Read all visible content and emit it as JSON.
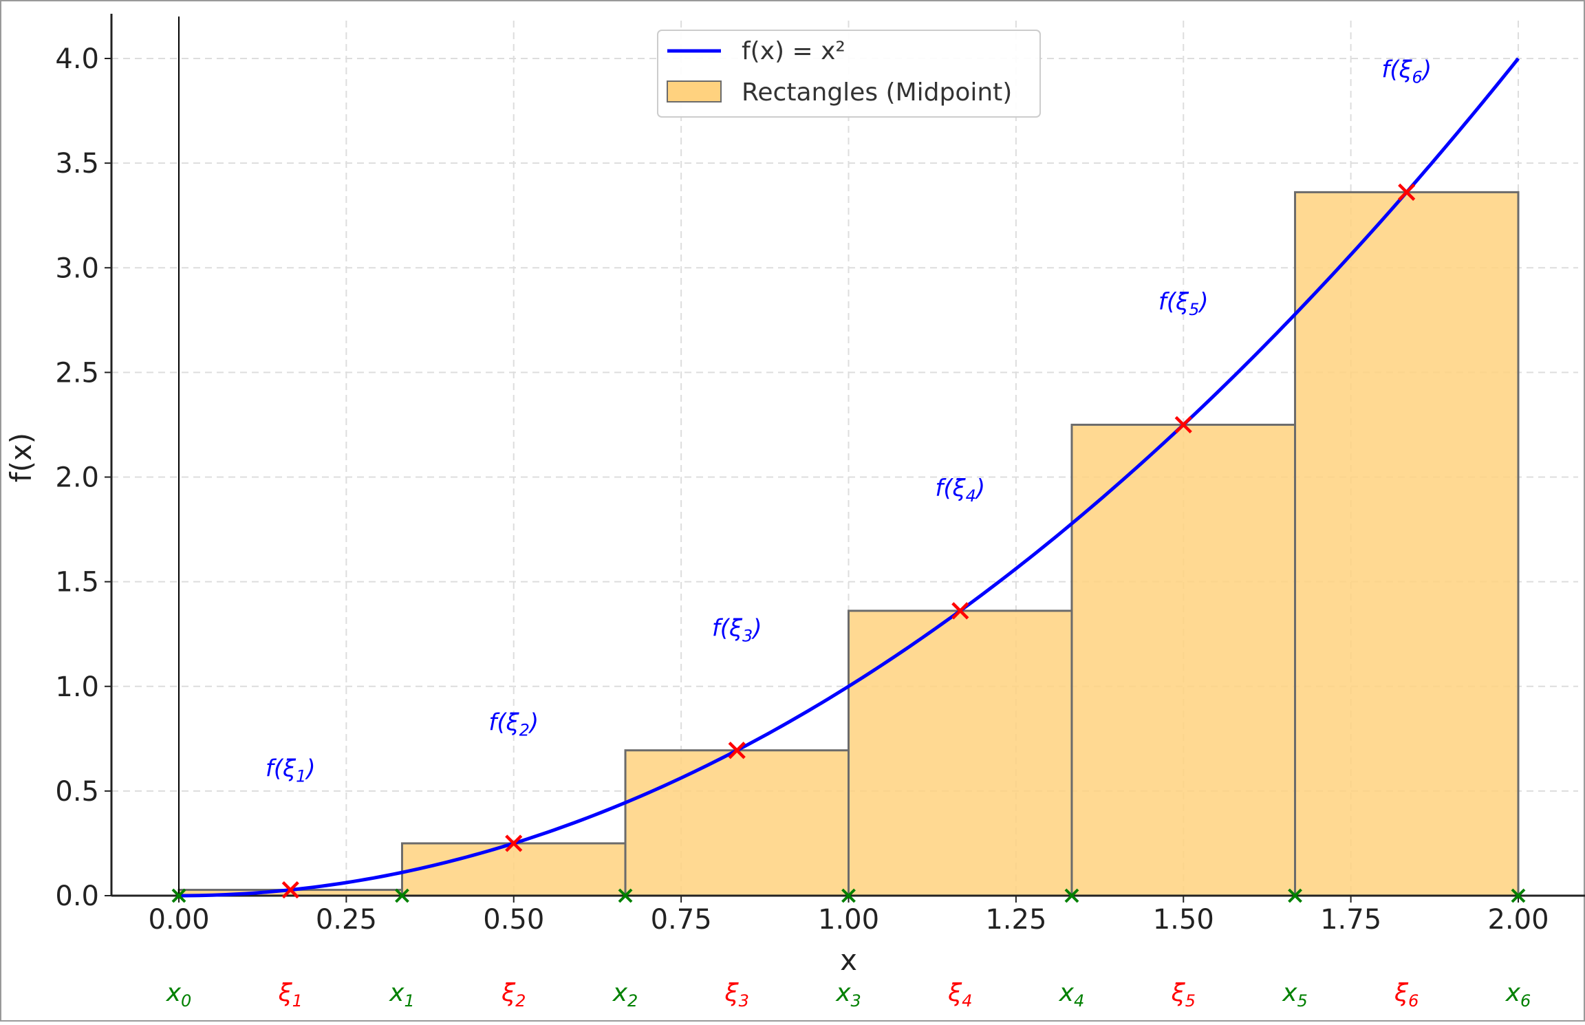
{
  "chart_data": {
    "type": "line",
    "title": "",
    "xlabel": "x",
    "ylabel": "f(x)",
    "xlim": [
      -0.1,
      2.05
    ],
    "ylim": [
      0,
      4.2
    ],
    "xticks": [
      "0.00",
      "0.25",
      "0.50",
      "0.75",
      "1.00",
      "1.25",
      "1.50",
      "1.75",
      "2.00"
    ],
    "yticks": [
      "0.0",
      "0.5",
      "1.0",
      "1.5",
      "2.0",
      "2.5",
      "3.0",
      "3.5",
      "4.0"
    ],
    "grid": true,
    "legend_position": "top-center",
    "series": [
      {
        "name": "f(x) = x²",
        "type": "line",
        "function": "x^2",
        "x_range": [
          0,
          2
        ],
        "color": "#0000ff"
      },
      {
        "name": "Rectangles (Midpoint)",
        "type": "bar",
        "color": "#ffd27f",
        "edge_color": "#6b6b6b",
        "bars": [
          {
            "x0": 0.0,
            "x1": 0.3333,
            "height": 0.0278
          },
          {
            "x0": 0.3333,
            "x1": 0.6667,
            "height": 0.25
          },
          {
            "x0": 0.6667,
            "x1": 1.0,
            "height": 0.6944
          },
          {
            "x0": 1.0,
            "x1": 1.3333,
            "height": 1.3611
          },
          {
            "x0": 1.3333,
            "x1": 1.6667,
            "height": 2.25
          },
          {
            "x0": 1.6667,
            "x1": 2.0,
            "height": 3.3611
          }
        ]
      }
    ],
    "midpoints": {
      "color": "#ff0000",
      "points": [
        {
          "x": 0.1667,
          "y": 0.0278
        },
        {
          "x": 0.5,
          "y": 0.25
        },
        {
          "x": 0.8333,
          "y": 0.6944
        },
        {
          "x": 1.1667,
          "y": 1.3611
        },
        {
          "x": 1.5,
          "y": 2.25
        },
        {
          "x": 1.8333,
          "y": 3.3611
        }
      ]
    },
    "partition_points": {
      "color": "#008000",
      "x": [
        0.0,
        0.3333,
        0.6667,
        1.0,
        1.3333,
        1.6667,
        2.0
      ]
    },
    "annotations": [
      {
        "text": "f(ξ",
        "sub": "1",
        "close": ")",
        "x": 0.1667,
        "y": 0.57
      },
      {
        "text": "f(ξ",
        "sub": "2",
        "close": ")",
        "x": 0.5,
        "y": 0.79
      },
      {
        "text": "f(ξ",
        "sub": "3",
        "close": ")",
        "x": 0.8333,
        "y": 1.24
      },
      {
        "text": "f(ξ",
        "sub": "4",
        "close": ")",
        "x": 1.1667,
        "y": 1.91
      },
      {
        "text": "f(ξ",
        "sub": "5",
        "close": ")",
        "x": 1.5,
        "y": 2.8
      },
      {
        "text": "f(ξ",
        "sub": "6",
        "close": ")",
        "x": 1.8333,
        "y": 3.91
      }
    ],
    "bottom_labels": [
      {
        "base": "x",
        "sub": "0",
        "x": 0.0,
        "color": "#008000"
      },
      {
        "base": "ξ",
        "sub": "1",
        "x": 0.1667,
        "color": "#ff0000"
      },
      {
        "base": "x",
        "sub": "1",
        "x": 0.3333,
        "color": "#008000"
      },
      {
        "base": "ξ",
        "sub": "2",
        "x": 0.5,
        "color": "#ff0000"
      },
      {
        "base": "x",
        "sub": "2",
        "x": 0.6667,
        "color": "#008000"
      },
      {
        "base": "ξ",
        "sub": "3",
        "x": 0.8333,
        "color": "#ff0000"
      },
      {
        "base": "x",
        "sub": "3",
        "x": 1.0,
        "color": "#008000"
      },
      {
        "base": "ξ",
        "sub": "4",
        "x": 1.1667,
        "color": "#ff0000"
      },
      {
        "base": "x",
        "sub": "4",
        "x": 1.3333,
        "color": "#008000"
      },
      {
        "base": "ξ",
        "sub": "5",
        "x": 1.5,
        "color": "#ff0000"
      },
      {
        "base": "x",
        "sub": "5",
        "x": 1.6667,
        "color": "#008000"
      },
      {
        "base": "ξ",
        "sub": "6",
        "x": 1.8333,
        "color": "#ff0000"
      },
      {
        "base": "x",
        "sub": "6",
        "x": 2.0,
        "color": "#008000"
      }
    ]
  }
}
